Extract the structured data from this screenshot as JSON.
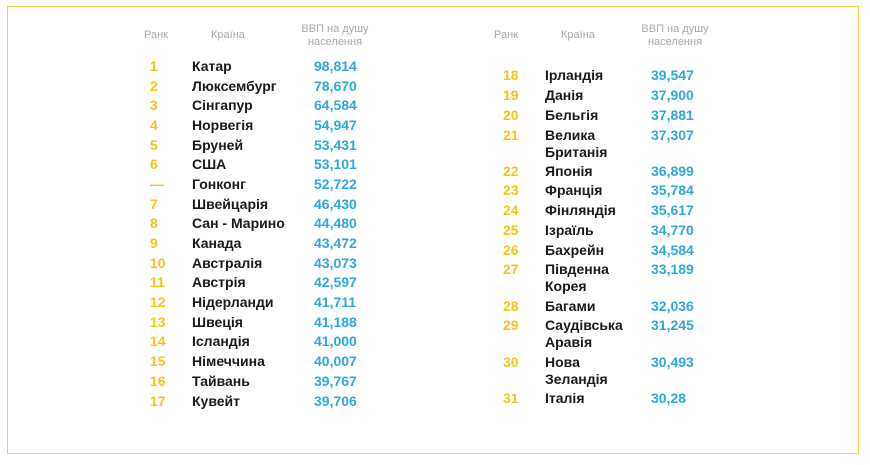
{
  "headers": {
    "rank": "Ранк",
    "country": "Країна",
    "gdp_line1": "ВВП на душу",
    "gdp_line2": "населення"
  },
  "left_rows": [
    {
      "rank": "1",
      "country": [
        "Катар"
      ],
      "gdp": "98,814"
    },
    {
      "rank": "2",
      "country": [
        "Люксембург"
      ],
      "gdp": "78,670"
    },
    {
      "rank": "3",
      "country": [
        "Сінгапур"
      ],
      "gdp": "64,584"
    },
    {
      "rank": "4",
      "country": [
        "Норвегія"
      ],
      "gdp": "54,947"
    },
    {
      "rank": "5",
      "country": [
        "Бруней"
      ],
      "gdp": "53,431"
    },
    {
      "rank": "6",
      "country": [
        "США"
      ],
      "gdp": "53,101"
    },
    {
      "rank": "—",
      "country": [
        "Гонконг"
      ],
      "gdp": "52,722"
    },
    {
      "rank": "7",
      "country": [
        "Швейцарія"
      ],
      "gdp": "46,430"
    },
    {
      "rank": "8",
      "country": [
        "Сан - Марино"
      ],
      "gdp": "44,480"
    },
    {
      "rank": "9",
      "country": [
        "Канада"
      ],
      "gdp": "43,472"
    },
    {
      "rank": "10",
      "country": [
        "Австралія"
      ],
      "gdp": "43,073"
    },
    {
      "rank": "11",
      "country": [
        "Австрія"
      ],
      "gdp": "42,597"
    },
    {
      "rank": "12",
      "country": [
        "Нідерланди"
      ],
      "gdp": "41,711"
    },
    {
      "rank": "13",
      "country": [
        "Швеція"
      ],
      "gdp": "41,188"
    },
    {
      "rank": "14",
      "country": [
        "Ісландія"
      ],
      "gdp": "41,000"
    },
    {
      "rank": "15",
      "country": [
        "Німеччина"
      ],
      "gdp": "40,007"
    },
    {
      "rank": "16",
      "country": [
        "Тайвань"
      ],
      "gdp": "39,767"
    },
    {
      "rank": "17",
      "country": [
        "Кувейт"
      ],
      "gdp": "39,706"
    }
  ],
  "right_rows": [
    {
      "rank": "18",
      "country": [
        "Ірландія"
      ],
      "gdp": "39,547"
    },
    {
      "rank": "19",
      "country": [
        "Данія"
      ],
      "gdp": "37,900"
    },
    {
      "rank": "20",
      "country": [
        "Бельгія"
      ],
      "gdp": "37,881"
    },
    {
      "rank": "21",
      "country": [
        "Велика",
        "Британія"
      ],
      "gdp": "37,307"
    },
    {
      "rank": "22",
      "country": [
        "Японія"
      ],
      "gdp": "36,899"
    },
    {
      "rank": "23",
      "country": [
        "Франція"
      ],
      "gdp": "35,784"
    },
    {
      "rank": "24",
      "country": [
        "Фінляндія"
      ],
      "gdp": "35,617"
    },
    {
      "rank": "25",
      "country": [
        "Ізраїль"
      ],
      "gdp": "34,770"
    },
    {
      "rank": "26",
      "country": [
        "Бахрейн"
      ],
      "gdp": "34,584"
    },
    {
      "rank": "27",
      "country": [
        "Південна",
        "Корея"
      ],
      "gdp": "33,189"
    },
    {
      "rank": "28",
      "country": [
        "Багами"
      ],
      "gdp": "32,036"
    },
    {
      "rank": "29",
      "country": [
        "Саудівська",
        "Аравія"
      ],
      "gdp": "31,245"
    },
    {
      "rank": "30",
      "country": [
        "Нова",
        "Зеландія"
      ],
      "gdp": "30,493"
    },
    {
      "rank": "31",
      "country": [
        "Італія"
      ],
      "gdp": "30,28"
    }
  ],
  "colors": {
    "rank": "#f5c518",
    "gdp": "#2ea8de",
    "country": "#1a1a1a",
    "header": "#a8a8a8",
    "frame": "#f2d34a"
  }
}
